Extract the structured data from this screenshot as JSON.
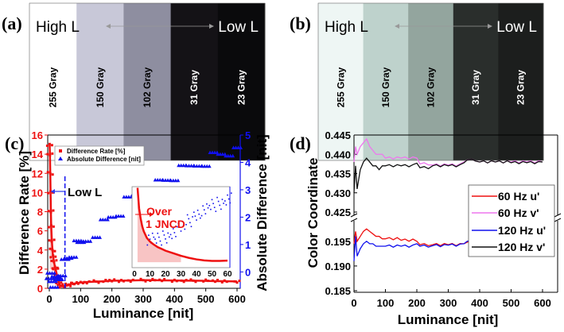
{
  "panels": {
    "a": {
      "label": "(a)",
      "high": "High L",
      "low": "Low L",
      "stripes": [
        {
          "label": "255 Gray",
          "color": "#ffffff",
          "text": "#000"
        },
        {
          "label": "150 Gray",
          "color": "#c8c8d8",
          "text": "#000"
        },
        {
          "label": "102 Gray",
          "color": "#8e8ea0",
          "text": "#000"
        },
        {
          "label": "31 Gray",
          "color": "#141216",
          "text": "#fff"
        },
        {
          "label": "23 Gray",
          "color": "#0a0a0c",
          "text": "#fff"
        }
      ]
    },
    "b": {
      "label": "(b)",
      "high": "High L",
      "low": "Low L",
      "stripes": [
        {
          "label": "255 Gray",
          "color": "#eef6f4",
          "text": "#000"
        },
        {
          "label": "150 Gray",
          "color": "#bed2cc",
          "text": "#000"
        },
        {
          "label": "102 Gray",
          "color": "#93a59e",
          "text": "#000"
        },
        {
          "label": "31 Gray",
          "color": "#2a2e2c",
          "text": "#fff"
        },
        {
          "label": "23 Gray",
          "color": "#1c1e1d",
          "text": "#fff"
        }
      ]
    }
  },
  "chart_data": [
    {
      "id": "c",
      "label": "(c)",
      "type": "scatter",
      "xlabel": "Luminance [nit]",
      "ylabel": "Difference Rate [%]",
      "y2label": "Absolute Difference [nit]",
      "xlim": [
        0,
        600
      ],
      "ylim": [
        0,
        16
      ],
      "y2lim": [
        -0.6,
        5
      ],
      "xticks": [
        "0",
        "100",
        "200",
        "300",
        "400",
        "500",
        "600"
      ],
      "yticks": [
        "0",
        "2",
        "4",
        "6",
        "8",
        "10",
        "12",
        "14",
        "16"
      ],
      "y2ticks": [
        "0",
        "1",
        "2",
        "3",
        "4",
        "5"
      ],
      "legend_position": "top-left",
      "series": [
        {
          "name": "Difference Rate [%]",
          "axis": "left",
          "color": "#ee1111",
          "marker": "square",
          "x": [
            1,
            2,
            3,
            4,
            5,
            6,
            8,
            10,
            12,
            15,
            18,
            20,
            25,
            30,
            35,
            40,
            50,
            60,
            70,
            80,
            100,
            120,
            150,
            180,
            200,
            230,
            260,
            300,
            330,
            360,
            400,
            430,
            460,
            500,
            530,
            560,
            600
          ],
          "y": [
            15,
            14,
            12,
            10,
            8,
            6.5,
            5,
            4,
            3.3,
            2.8,
            2.2,
            2,
            1.3,
            0.6,
            0.3,
            0.2,
            0.25,
            0.35,
            0.45,
            0.5,
            0.6,
            0.65,
            0.7,
            0.75,
            0.8,
            0.8,
            0.82,
            0.85,
            0.85,
            0.83,
            0.82,
            0.8,
            0.8,
            0.78,
            0.75,
            0.75,
            0.72
          ]
        },
        {
          "name": "Absolute Difference [nit]",
          "axis": "right",
          "color": "#1010ee",
          "marker": "triangle",
          "x": [
            2,
            5,
            10,
            15,
            20,
            25,
            30,
            40,
            50,
            60,
            75,
            90,
            100,
            120,
            150,
            175,
            200,
            225,
            250,
            275,
            300,
            325,
            350,
            375,
            400,
            425,
            450,
            475,
            500,
            525,
            550,
            575,
            600
          ],
          "y": [
            0,
            -0.2,
            -0.35,
            -0.4,
            -0.4,
            -0.3,
            -0.2,
            0.1,
            0.3,
            0.5,
            0.7,
            0.9,
            1.0,
            1.2,
            1.5,
            1.75,
            2.0,
            2.2,
            2.5,
            2.7,
            2.9,
            3.1,
            3.2,
            3.35,
            3.5,
            3.65,
            3.8,
            3.95,
            4.1,
            4.2,
            4.3,
            4.4,
            4.3
          ]
        }
      ],
      "annotations": {
        "low_l": "Low L",
        "low_l_x": 50,
        "jncd": "Over\n1 JNCD",
        "jncd_line1": "Over",
        "jncd_line2": "1 JNCD"
      },
      "inset": {
        "xlim": [
          0,
          60
        ],
        "xticks": [
          "0",
          "10",
          "20",
          "30",
          "40",
          "50",
          "60"
        ],
        "red_x": [
          2,
          3,
          4,
          5,
          6,
          8,
          10,
          12,
          15,
          18,
          20,
          25,
          30,
          35,
          40,
          45,
          50,
          55,
          60
        ],
        "red_y": [
          15,
          11,
          9,
          7.5,
          6.5,
          5.2,
          4.5,
          4,
          3.4,
          3,
          2.7,
          2.2,
          1.7,
          1.3,
          1,
          0.8,
          0.7,
          0.7,
          0.75
        ],
        "blue_x": [
          10,
          15,
          20,
          25,
          30,
          35,
          40,
          45,
          50,
          55,
          60
        ],
        "blue_y": [
          0.45,
          0.45,
          0.55,
          0.75,
          1.0,
          1.3,
          1.6,
          1.8,
          2.0,
          2.1,
          2.3
        ]
      }
    },
    {
      "id": "d",
      "label": "(d)",
      "type": "line",
      "xlabel": "Luminance [nit]",
      "ylabel": "Color Coordinate",
      "xlim": [
        0,
        600
      ],
      "ylim_upper": [
        0.425,
        0.445
      ],
      "ylim_lower": [
        0.185,
        0.1985
      ],
      "xticks": [
        "0",
        "100",
        "200",
        "300",
        "400",
        "500",
        "600"
      ],
      "yticks_upper": [
        "0.425",
        "0.430",
        "0.435",
        "0.440",
        "0.445"
      ],
      "yticks_lower": [
        "0.185",
        "0.190",
        "0.195"
      ],
      "legend_position": "right",
      "x": [
        0,
        5,
        10,
        20,
        30,
        40,
        50,
        60,
        70,
        80,
        90,
        100,
        150,
        200,
        210,
        250,
        300,
        350,
        360,
        400,
        450,
        500,
        550,
        600
      ],
      "series": [
        {
          "name": "60 Hz u'",
          "color": "#ee1111",
          "y": [
            0.1945,
            0.197,
            0.195,
            0.196,
            0.197,
            0.1975,
            0.197,
            0.1965,
            0.196,
            0.196,
            0.1955,
            0.1955,
            0.1952,
            0.195,
            0.1943,
            0.1943,
            0.1943,
            0.1945,
            0.1948,
            0.1947,
            0.1945,
            0.1943,
            0.1944,
            0.1945
          ]
        },
        {
          "name": "60 Hz v'",
          "color": "#ee77ee",
          "y": [
            0.438,
            0.442,
            0.44,
            0.442,
            0.443,
            0.444,
            0.442,
            0.441,
            0.44,
            0.44,
            0.44,
            0.439,
            0.439,
            0.439,
            0.4375,
            0.4372,
            0.4372,
            0.438,
            0.4385,
            0.438,
            0.438,
            0.438,
            0.438,
            0.438
          ]
        },
        {
          "name": "120 Hz u'",
          "color": "#1111ee",
          "y": [
            0.191,
            0.196,
            0.192,
            0.1935,
            0.1945,
            0.195,
            0.1945,
            0.1945,
            0.194,
            0.194,
            0.194,
            0.194,
            0.194,
            0.1945,
            0.194,
            0.1941,
            0.1942,
            0.1945,
            0.195,
            0.1948,
            0.1946,
            0.1944,
            0.1946,
            0.1946
          ]
        },
        {
          "name": "120 Hz v'",
          "color": "#111111",
          "y": [
            0.43,
            0.437,
            0.431,
            0.436,
            0.438,
            0.439,
            0.438,
            0.437,
            0.437,
            0.436,
            0.437,
            0.437,
            0.437,
            0.4377,
            0.4365,
            0.437,
            0.437,
            0.4378,
            0.4385,
            0.438,
            0.438,
            0.4378,
            0.4378,
            0.438
          ]
        }
      ]
    }
  ]
}
